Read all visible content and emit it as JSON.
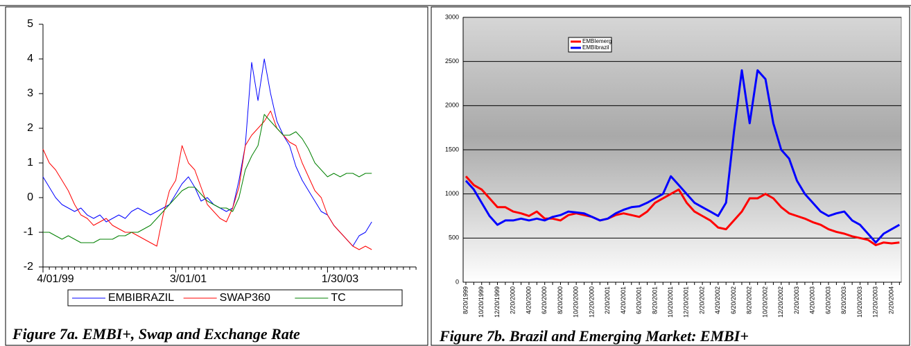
{
  "chart_data": [
    {
      "type": "line",
      "caption": "Figure 7a. EMBI+, Swap and Exchange Rate",
      "categories": [
        "4/01/99",
        null,
        null,
        null,
        null,
        null,
        null,
        null,
        null,
        null,
        null,
        null,
        null,
        null,
        null,
        null,
        null,
        null,
        null,
        null,
        null,
        "3/01/01",
        null,
        null,
        null,
        null,
        null,
        null,
        null,
        null,
        null,
        null,
        null,
        null,
        null,
        null,
        null,
        null,
        null,
        null,
        null,
        null,
        null,
        null,
        null,
        "1/30/03",
        null,
        null,
        null,
        null,
        null,
        null,
        null,
        null,
        null,
        null,
        null,
        null,
        null,
        null
      ],
      "series": [
        {
          "name": "EMBIBRAZIL",
          "color": "#0000ff",
          "values": [
            0.6,
            0.3,
            0.0,
            -0.2,
            -0.3,
            -0.4,
            -0.3,
            -0.5,
            -0.6,
            -0.5,
            -0.7,
            -0.6,
            -0.5,
            -0.6,
            -0.4,
            -0.3,
            -0.4,
            -0.5,
            -0.4,
            -0.3,
            -0.2,
            0.1,
            0.4,
            0.6,
            0.3,
            -0.1,
            0.0,
            -0.2,
            -0.3,
            -0.4,
            -0.3,
            0.5,
            1.5,
            3.9,
            2.8,
            4.0,
            3.0,
            2.2,
            1.8,
            1.5,
            0.9,
            0.5,
            0.2,
            -0.1,
            -0.4,
            -0.5,
            -0.8,
            -1.0,
            -1.2,
            -1.4,
            -1.1,
            -1.0,
            -0.7,
            null,
            null,
            null,
            null,
            null,
            null,
            null
          ]
        },
        {
          "name": "SWAP360",
          "color": "#ff0000",
          "values": [
            1.4,
            1.0,
            0.8,
            0.5,
            0.2,
            -0.2,
            -0.5,
            -0.6,
            -0.8,
            -0.7,
            -0.6,
            -0.8,
            -0.9,
            -1.0,
            -1.0,
            -1.1,
            -1.2,
            -1.3,
            -1.4,
            -0.5,
            0.2,
            0.5,
            1.5,
            1.0,
            0.8,
            0.3,
            -0.2,
            -0.4,
            -0.6,
            -0.7,
            -0.3,
            0.3,
            1.5,
            1.8,
            2.0,
            2.2,
            2.5,
            2.0,
            1.8,
            1.6,
            1.5,
            1.0,
            0.6,
            0.2,
            0.0,
            -0.5,
            -0.8,
            -1.0,
            -1.2,
            -1.4,
            -1.5,
            -1.4,
            -1.5,
            null,
            null,
            null,
            null,
            null,
            null,
            null
          ]
        },
        {
          "name": "TC",
          "color": "#008000",
          "values": [
            -1.0,
            -1.0,
            -1.1,
            -1.2,
            -1.1,
            -1.2,
            -1.3,
            -1.3,
            -1.3,
            -1.2,
            -1.2,
            -1.2,
            -1.1,
            -1.1,
            -1.0,
            -1.0,
            -0.9,
            -0.8,
            -0.6,
            -0.4,
            -0.2,
            0.0,
            0.2,
            0.3,
            0.3,
            0.1,
            -0.1,
            -0.2,
            -0.3,
            -0.3,
            -0.4,
            0.0,
            0.8,
            1.2,
            1.5,
            2.4,
            2.2,
            2.0,
            1.8,
            1.8,
            1.9,
            1.7,
            1.4,
            1.0,
            0.8,
            0.6,
            0.7,
            0.6,
            0.7,
            0.7,
            0.6,
            0.7,
            0.7,
            null,
            null,
            null,
            null,
            null,
            null,
            null
          ]
        }
      ],
      "ylim": [
        -2,
        5
      ],
      "yticks": [
        -2,
        -1,
        0,
        1,
        2,
        3,
        4,
        5
      ],
      "grid": false,
      "legend": "bottom"
    },
    {
      "type": "line",
      "caption": "Figure 7b. Brazil and Emerging Market: EMBI+",
      "categories": [
        "8/20/1999",
        null,
        "10/20/1999",
        null,
        "12/20/1999",
        null,
        "2/20/2000",
        null,
        "4/20/2000",
        null,
        "6/20/2000",
        null,
        "8/20/2000",
        null,
        "10/20/2000",
        null,
        "12/20/2000",
        null,
        "2/20/2001",
        null,
        "4/20/2001",
        null,
        "6/20/2001",
        null,
        "8/20/2001",
        null,
        "10/20/2001",
        null,
        "12/20/2001",
        null,
        "2/20/2002",
        null,
        "4/20/2002",
        null,
        "6/20/2002",
        null,
        "8/20/2002",
        null,
        "10/20/2002",
        null,
        "12/20/2002",
        null,
        "2/20/2003",
        null,
        "4/20/2003",
        null,
        "6/20/2003",
        null,
        "8/20/2003",
        null,
        "10/20/2003",
        null,
        "12/20/2003",
        null,
        "2/20/2004",
        null
      ],
      "series": [
        {
          "name": "EMBIemerg",
          "color": "#ff0000",
          "values": [
            1200,
            1100,
            1050,
            950,
            850,
            850,
            800,
            780,
            750,
            800,
            720,
            720,
            700,
            760,
            780,
            760,
            740,
            700,
            720,
            760,
            780,
            760,
            740,
            800,
            900,
            950,
            1000,
            1050,
            900,
            800,
            750,
            700,
            620,
            600,
            700,
            800,
            950,
            950,
            1000,
            950,
            850,
            780,
            750,
            720,
            680,
            650,
            600,
            570,
            550,
            520,
            500,
            480,
            420,
            450,
            440,
            450
          ]
        },
        {
          "name": "EMBIbrazil",
          "color": "#0000ff",
          "values": [
            1150,
            1050,
            900,
            750,
            650,
            700,
            700,
            720,
            700,
            720,
            700,
            740,
            760,
            800,
            790,
            780,
            740,
            700,
            720,
            780,
            820,
            850,
            860,
            900,
            950,
            1000,
            1200,
            1100,
            1000,
            900,
            850,
            800,
            750,
            900,
            1700,
            2400,
            1800,
            2400,
            2300,
            1800,
            1500,
            1400,
            1150,
            1000,
            900,
            800,
            750,
            780,
            800,
            700,
            650,
            550,
            450,
            550,
            600,
            650
          ]
        }
      ],
      "ylim": [
        0,
        3000
      ],
      "yticks": [
        0,
        500,
        1000,
        1500,
        2000,
        2500,
        3000
      ],
      "grid": true,
      "legend": "top"
    }
  ]
}
